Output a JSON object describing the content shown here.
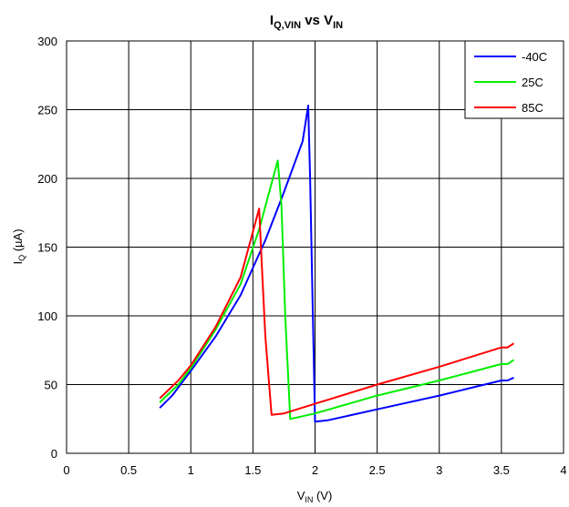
{
  "chart_data": {
    "type": "line",
    "title": {
      "main": "I",
      "main_sub": "Q,VIN",
      "mid": " vs V",
      "end_sub": "IN"
    },
    "xlabel": {
      "main": "V",
      "sub": "IN",
      "suffix": " (V)"
    },
    "ylabel": {
      "main": "I",
      "sub": "Q",
      "suffix": " (µA)"
    },
    "xlim": [
      0,
      4
    ],
    "ylim": [
      0,
      300
    ],
    "xticks": [
      0,
      0.5,
      1,
      1.5,
      2,
      2.5,
      3,
      3.5,
      4
    ],
    "xtick_labels": [
      "0",
      "0.5",
      "1",
      "1.5",
      "2",
      "2.5",
      "3",
      "3.5",
      "4"
    ],
    "yticks": [
      0,
      50,
      100,
      150,
      200,
      250,
      300
    ],
    "ytick_labels": [
      "0",
      "50",
      "100",
      "150",
      "200",
      "250",
      "300"
    ],
    "grid": true,
    "legend_position": "top-right",
    "series": [
      {
        "name": "-40C",
        "color": "#0000ff",
        "points": [
          [
            0.75,
            33
          ],
          [
            0.85,
            42
          ],
          [
            1.0,
            60
          ],
          [
            1.2,
            85
          ],
          [
            1.4,
            115
          ],
          [
            1.6,
            155
          ],
          [
            1.75,
            190
          ],
          [
            1.9,
            227
          ],
          [
            1.945,
            253
          ],
          [
            1.96,
            200
          ],
          [
            1.98,
            110
          ],
          [
            2.0,
            23
          ],
          [
            2.1,
            24
          ],
          [
            2.5,
            32
          ],
          [
            3.0,
            42
          ],
          [
            3.5,
            53
          ],
          [
            3.55,
            53
          ],
          [
            3.6,
            55
          ]
        ]
      },
      {
        "name": "25C",
        "color": "#00ee00",
        "points": [
          [
            0.75,
            37
          ],
          [
            0.9,
            50
          ],
          [
            1.0,
            62
          ],
          [
            1.2,
            90
          ],
          [
            1.4,
            123
          ],
          [
            1.55,
            163
          ],
          [
            1.7,
            213
          ],
          [
            1.73,
            180
          ],
          [
            1.76,
            100
          ],
          [
            1.8,
            25
          ],
          [
            2.0,
            29
          ],
          [
            2.5,
            42
          ],
          [
            3.0,
            53
          ],
          [
            3.5,
            65
          ],
          [
            3.55,
            65
          ],
          [
            3.6,
            68
          ]
        ]
      },
      {
        "name": "85C",
        "color": "#ff0000",
        "points": [
          [
            0.75,
            40
          ],
          [
            0.9,
            53
          ],
          [
            1.0,
            64
          ],
          [
            1.2,
            92
          ],
          [
            1.4,
            128
          ],
          [
            1.55,
            178
          ],
          [
            1.57,
            140
          ],
          [
            1.6,
            85
          ],
          [
            1.65,
            28
          ],
          [
            1.75,
            29
          ],
          [
            2.0,
            36
          ],
          [
            2.5,
            50
          ],
          [
            3.0,
            63
          ],
          [
            3.5,
            77
          ],
          [
            3.55,
            77
          ],
          [
            3.6,
            80
          ]
        ]
      }
    ]
  }
}
